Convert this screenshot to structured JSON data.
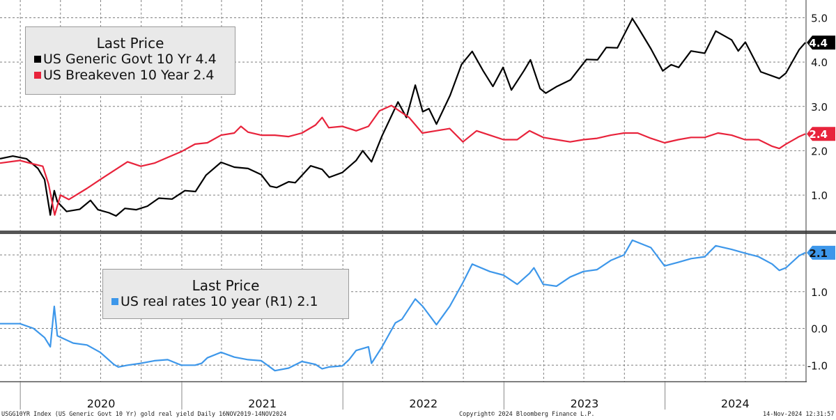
{
  "colors": {
    "govt10y": "#000000",
    "breakeven10y": "#e8233b",
    "real10y": "#3d97ea",
    "grid": "#7f7f7f",
    "divider": "#555555"
  },
  "top_legend": {
    "title": "Last Price",
    "items": [
      {
        "label": "US Generic Govt 10 Yr 4.4",
        "color_key": "govt10y"
      },
      {
        "label": "US Breakeven 10 Year 2.4",
        "color_key": "breakeven10y"
      }
    ]
  },
  "bottom_legend": {
    "title": "Last Price",
    "items": [
      {
        "label": "US real rates 10 year  (R1) 2.1",
        "color_key": "real10y"
      }
    ]
  },
  "footer": {
    "left": "USGG10YR Index (US Generic Govt 10 Yr) gold real yield  Daily 16NOV2019-14NOV2024",
    "center": "Copyright© 2024 Bloomberg Finance L.P.",
    "right": "14-Nov-2024 12:31:57"
  },
  "chart_data": [
    {
      "type": "line",
      "panel": "top",
      "x_range": [
        "2019-11-16",
        "2024-11-14"
      ],
      "x_tick_labels": [
        "2020",
        "2021",
        "2022",
        "2023",
        "2024"
      ],
      "y_tick_labels": [
        "1.0",
        "2.0",
        "3.0",
        "4.0",
        "5.0"
      ],
      "ylim": [
        0.2,
        5.4
      ],
      "y_axis_side": "right",
      "grid": true,
      "legend": "top-left",
      "last_value_badges": [
        {
          "series": "US Generic Govt 10 Yr",
          "text": "4.4"
        },
        {
          "series": "US Breakeven 10 Year",
          "text": "2.4"
        }
      ],
      "series": [
        {
          "name": "US Generic Govt 10 Yr",
          "color_key": "govt10y",
          "points": [
            [
              "2019-11-16",
              1.82
            ],
            [
              "2019-12-15",
              1.88
            ],
            [
              "2020-01-15",
              1.82
            ],
            [
              "2020-02-10",
              1.6
            ],
            [
              "2020-02-25",
              1.35
            ],
            [
              "2020-03-09",
              0.55
            ],
            [
              "2020-03-18",
              1.1
            ],
            [
              "2020-03-25",
              0.85
            ],
            [
              "2020-04-15",
              0.63
            ],
            [
              "2020-05-15",
              0.68
            ],
            [
              "2020-06-08",
              0.88
            ],
            [
              "2020-06-25",
              0.67
            ],
            [
              "2020-07-20",
              0.6
            ],
            [
              "2020-08-05",
              0.53
            ],
            [
              "2020-08-25",
              0.7
            ],
            [
              "2020-09-20",
              0.67
            ],
            [
              "2020-10-15",
              0.75
            ],
            [
              "2020-11-10",
              0.93
            ],
            [
              "2020-12-10",
              0.91
            ],
            [
              "2021-01-08",
              1.1
            ],
            [
              "2021-02-01",
              1.08
            ],
            [
              "2021-02-25",
              1.45
            ],
            [
              "2021-03-31",
              1.74
            ],
            [
              "2021-04-30",
              1.63
            ],
            [
              "2021-05-31",
              1.6
            ],
            [
              "2021-06-30",
              1.46
            ],
            [
              "2021-07-20",
              1.2
            ],
            [
              "2021-08-04",
              1.17
            ],
            [
              "2021-08-31",
              1.3
            ],
            [
              "2021-09-15",
              1.28
            ],
            [
              "2021-10-20",
              1.66
            ],
            [
              "2021-11-15",
              1.58
            ],
            [
              "2021-12-01",
              1.4
            ],
            [
              "2021-12-31",
              1.51
            ],
            [
              "2022-01-31",
              1.78
            ],
            [
              "2022-02-15",
              2.0
            ],
            [
              "2022-03-07",
              1.75
            ],
            [
              "2022-03-31",
              2.34
            ],
            [
              "2022-05-06",
              3.1
            ],
            [
              "2022-05-25",
              2.75
            ],
            [
              "2022-06-14",
              3.48
            ],
            [
              "2022-07-01",
              2.88
            ],
            [
              "2022-07-15",
              2.95
            ],
            [
              "2022-08-01",
              2.6
            ],
            [
              "2022-09-01",
              3.25
            ],
            [
              "2022-09-27",
              3.95
            ],
            [
              "2022-10-21",
              4.24
            ],
            [
              "2022-11-15",
              3.8
            ],
            [
              "2022-12-07",
              3.45
            ],
            [
              "2022-12-30",
              3.88
            ],
            [
              "2023-01-18",
              3.37
            ],
            [
              "2023-02-15",
              3.8
            ],
            [
              "2023-03-02",
              4.05
            ],
            [
              "2023-03-24",
              3.4
            ],
            [
              "2023-04-06",
              3.3
            ],
            [
              "2023-05-01",
              3.45
            ],
            [
              "2023-06-01",
              3.6
            ],
            [
              "2023-07-07",
              4.06
            ],
            [
              "2023-08-01",
              4.05
            ],
            [
              "2023-08-21",
              4.33
            ],
            [
              "2023-09-15",
              4.32
            ],
            [
              "2023-10-19",
              4.98
            ],
            [
              "2023-11-01",
              4.78
            ],
            [
              "2023-11-30",
              4.3
            ],
            [
              "2023-12-27",
              3.8
            ],
            [
              "2024-01-15",
              3.94
            ],
            [
              "2024-02-01",
              3.88
            ],
            [
              "2024-02-29",
              4.25
            ],
            [
              "2024-03-31",
              4.2
            ],
            [
              "2024-04-25",
              4.7
            ],
            [
              "2024-05-31",
              4.5
            ],
            [
              "2024-06-15",
              4.25
            ],
            [
              "2024-07-01",
              4.45
            ],
            [
              "2024-08-05",
              3.78
            ],
            [
              "2024-09-16",
              3.63
            ],
            [
              "2024-10-01",
              3.75
            ],
            [
              "2024-10-31",
              4.28
            ],
            [
              "2024-11-14",
              4.44
            ]
          ]
        },
        {
          "name": "US Breakeven 10 Year",
          "color_key": "breakeven10y",
          "points": [
            [
              "2019-11-16",
              1.72
            ],
            [
              "2019-12-31",
              1.78
            ],
            [
              "2020-01-31",
              1.7
            ],
            [
              "2020-02-21",
              1.65
            ],
            [
              "2020-03-05",
              1.25
            ],
            [
              "2020-03-19",
              0.55
            ],
            [
              "2020-04-01",
              1.0
            ],
            [
              "2020-04-20",
              0.9
            ],
            [
              "2020-05-31",
              1.15
            ],
            [
              "2020-06-30",
              1.35
            ],
            [
              "2020-07-31",
              1.55
            ],
            [
              "2020-08-31",
              1.75
            ],
            [
              "2020-09-30",
              1.65
            ],
            [
              "2020-10-31",
              1.72
            ],
            [
              "2020-11-30",
              1.85
            ],
            [
              "2020-12-31",
              1.98
            ],
            [
              "2021-01-31",
              2.15
            ],
            [
              "2021-02-28",
              2.18
            ],
            [
              "2021-03-31",
              2.35
            ],
            [
              "2021-04-30",
              2.4
            ],
            [
              "2021-05-15",
              2.55
            ],
            [
              "2021-05-31",
              2.42
            ],
            [
              "2021-06-30",
              2.35
            ],
            [
              "2021-07-31",
              2.35
            ],
            [
              "2021-08-31",
              2.32
            ],
            [
              "2021-09-30",
              2.4
            ],
            [
              "2021-10-31",
              2.58
            ],
            [
              "2021-11-15",
              2.75
            ],
            [
              "2021-11-30",
              2.52
            ],
            [
              "2021-12-31",
              2.55
            ],
            [
              "2022-01-31",
              2.45
            ],
            [
              "2022-02-28",
              2.55
            ],
            [
              "2022-03-25",
              2.9
            ],
            [
              "2022-04-21",
              3.02
            ],
            [
              "2022-05-31",
              2.75
            ],
            [
              "2022-06-30",
              2.4
            ],
            [
              "2022-07-31",
              2.45
            ],
            [
              "2022-08-31",
              2.5
            ],
            [
              "2022-09-30",
              2.2
            ],
            [
              "2022-10-31",
              2.45
            ],
            [
              "2022-11-30",
              2.35
            ],
            [
              "2022-12-31",
              2.25
            ],
            [
              "2023-01-31",
              2.25
            ],
            [
              "2023-02-28",
              2.45
            ],
            [
              "2023-03-31",
              2.3
            ],
            [
              "2023-04-30",
              2.25
            ],
            [
              "2023-05-31",
              2.2
            ],
            [
              "2023-06-30",
              2.25
            ],
            [
              "2023-07-31",
              2.28
            ],
            [
              "2023-08-31",
              2.35
            ],
            [
              "2023-09-30",
              2.4
            ],
            [
              "2023-10-31",
              2.4
            ],
            [
              "2023-11-30",
              2.28
            ],
            [
              "2023-12-31",
              2.18
            ],
            [
              "2024-01-31",
              2.25
            ],
            [
              "2024-02-29",
              2.3
            ],
            [
              "2024-03-31",
              2.3
            ],
            [
              "2024-04-30",
              2.4
            ],
            [
              "2024-05-31",
              2.35
            ],
            [
              "2024-06-30",
              2.25
            ],
            [
              "2024-07-31",
              2.25
            ],
            [
              "2024-08-31",
              2.1
            ],
            [
              "2024-09-16",
              2.05
            ],
            [
              "2024-10-01",
              2.15
            ],
            [
              "2024-10-31",
              2.32
            ],
            [
              "2024-11-14",
              2.38
            ]
          ]
        }
      ]
    },
    {
      "type": "line",
      "panel": "bottom",
      "x_range": [
        "2019-11-16",
        "2024-11-14"
      ],
      "x_tick_labels": [
        "2020",
        "2021",
        "2022",
        "2023",
        "2024"
      ],
      "y_tick_labels": [
        "-1.0",
        "0.0",
        "1.0",
        "2.0"
      ],
      "ylim": [
        -1.45,
        2.55
      ],
      "y_axis_side": "right",
      "grid": true,
      "legend": "top-left",
      "last_value_badges": [
        {
          "series": "US real rates 10 year  (R1)",
          "text": "2.1"
        }
      ],
      "series": [
        {
          "name": "US real rates 10 year  (R1)",
          "color_key": "real10y",
          "points": [
            [
              "2019-11-16",
              0.13
            ],
            [
              "2019-12-31",
              0.13
            ],
            [
              "2020-01-31",
              0.0
            ],
            [
              "2020-02-25",
              -0.25
            ],
            [
              "2020-03-09",
              -0.5
            ],
            [
              "2020-03-18",
              0.6
            ],
            [
              "2020-03-25",
              -0.2
            ],
            [
              "2020-04-30",
              -0.4
            ],
            [
              "2020-05-31",
              -0.45
            ],
            [
              "2020-06-30",
              -0.65
            ],
            [
              "2020-07-31",
              -0.98
            ],
            [
              "2020-08-10",
              -1.05
            ],
            [
              "2020-08-31",
              -1.0
            ],
            [
              "2020-09-30",
              -0.95
            ],
            [
              "2020-10-31",
              -0.88
            ],
            [
              "2020-11-30",
              -0.85
            ],
            [
              "2020-12-31",
              -1.0
            ],
            [
              "2021-01-31",
              -1.0
            ],
            [
              "2021-02-15",
              -0.95
            ],
            [
              "2021-02-28",
              -0.8
            ],
            [
              "2021-03-31",
              -0.65
            ],
            [
              "2021-04-30",
              -0.78
            ],
            [
              "2021-05-31",
              -0.85
            ],
            [
              "2021-06-30",
              -0.88
            ],
            [
              "2021-07-31",
              -1.15
            ],
            [
              "2021-08-31",
              -1.08
            ],
            [
              "2021-09-30",
              -0.9
            ],
            [
              "2021-10-31",
              -0.98
            ],
            [
              "2021-11-15",
              -1.1
            ],
            [
              "2021-11-30",
              -1.05
            ],
            [
              "2021-12-31",
              -1.02
            ],
            [
              "2022-01-15",
              -0.85
            ],
            [
              "2022-01-31",
              -0.6
            ],
            [
              "2022-02-28",
              -0.5
            ],
            [
              "2022-03-07",
              -0.95
            ],
            [
              "2022-03-31",
              -0.5
            ],
            [
              "2022-04-30",
              0.15
            ],
            [
              "2022-05-15",
              0.25
            ],
            [
              "2022-06-14",
              0.8
            ],
            [
              "2022-07-01",
              0.6
            ],
            [
              "2022-08-01",
              0.1
            ],
            [
              "2022-08-31",
              0.6
            ],
            [
              "2022-09-30",
              1.25
            ],
            [
              "2022-10-21",
              1.75
            ],
            [
              "2022-11-30",
              1.55
            ],
            [
              "2022-12-31",
              1.45
            ],
            [
              "2023-01-31",
              1.2
            ],
            [
              "2023-02-28",
              1.5
            ],
            [
              "2023-03-10",
              1.65
            ],
            [
              "2023-03-31",
              1.2
            ],
            [
              "2023-04-30",
              1.15
            ],
            [
              "2023-05-31",
              1.4
            ],
            [
              "2023-06-30",
              1.55
            ],
            [
              "2023-07-31",
              1.6
            ],
            [
              "2023-08-31",
              1.85
            ],
            [
              "2023-09-30",
              2.0
            ],
            [
              "2023-10-19",
              2.4
            ],
            [
              "2023-11-30",
              2.2
            ],
            [
              "2023-12-31",
              1.7
            ],
            [
              "2024-01-31",
              1.8
            ],
            [
              "2024-02-29",
              1.9
            ],
            [
              "2024-03-31",
              1.95
            ],
            [
              "2024-04-25",
              2.25
            ],
            [
              "2024-05-31",
              2.15
            ],
            [
              "2024-06-30",
              2.05
            ],
            [
              "2024-07-31",
              1.95
            ],
            [
              "2024-08-31",
              1.75
            ],
            [
              "2024-09-16",
              1.58
            ],
            [
              "2024-10-01",
              1.65
            ],
            [
              "2024-10-31",
              1.98
            ],
            [
              "2024-11-14",
              2.06
            ]
          ]
        }
      ]
    }
  ]
}
